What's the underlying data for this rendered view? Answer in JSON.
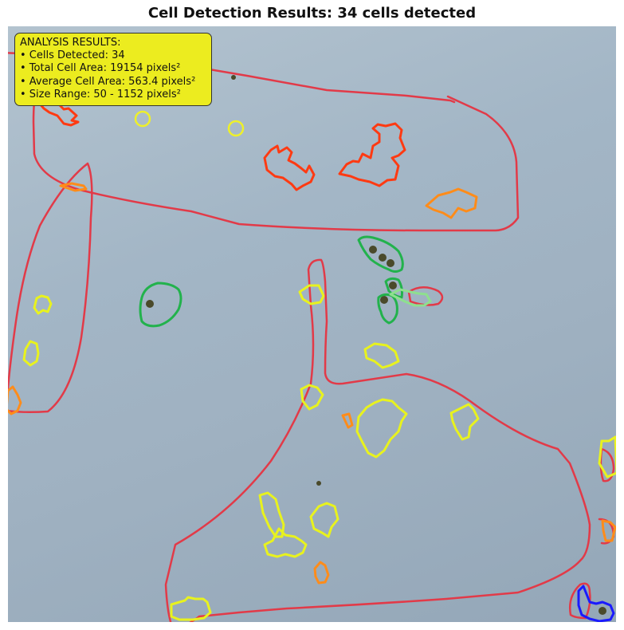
{
  "title": "Cell Detection Results: 34 cells detected",
  "results": {
    "heading": "ANALYSIS RESULTS:",
    "lines": [
      "• Cells Detected: 34",
      "• Total Cell Area: 19154 pixels²",
      "• Average Cell Area: 563.4 pixels²",
      "• Size Range: 50 - 1152 pixels²"
    ]
  },
  "colors": {
    "annotation_stroke": "#e23a48",
    "panel_background": "#a3b6c6",
    "info_box": "#ecec1f",
    "contour_red": "#ff3a12",
    "contour_orange": "#ff8c1a",
    "contour_yellow": "#e8f21e",
    "contour_green": "#22b24c",
    "contour_blue": "#1a1aff"
  }
}
